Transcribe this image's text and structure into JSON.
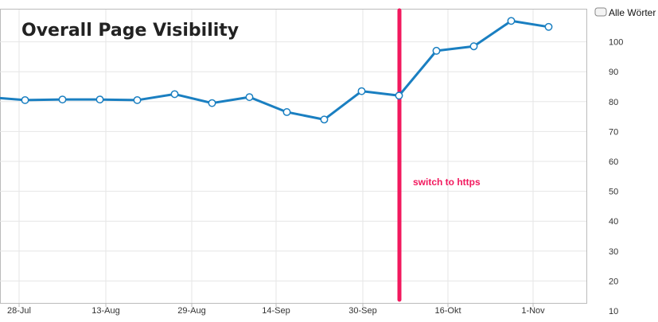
{
  "colors": {
    "series": "#1a7fc1",
    "annotation": "#f2195e",
    "grid": "#e6e6e6",
    "axis": "#bbbbbb"
  },
  "chart_data": {
    "type": "line",
    "title": "Overall Page Visibility",
    "legend": {
      "label": "Alle Wörter",
      "placement": "top-right"
    },
    "x_tick_labels": [
      "28-Jul",
      "13-Aug",
      "29-Aug",
      "14-Sep",
      "30-Sep",
      "16-Okt",
      "1-Nov"
    ],
    "y_ticks": [
      10,
      20,
      30,
      40,
      50,
      60,
      70,
      80,
      90,
      100
    ],
    "ylim": [
      10,
      109
    ],
    "grid": true,
    "series": [
      {
        "values": [
          81.5,
          80.5,
          80.7,
          80.7,
          80.5,
          82.5,
          79.5,
          81.5,
          76.5,
          74,
          83.5,
          82,
          97,
          98.5,
          107,
          105
        ]
      }
    ],
    "annotation": {
      "text": "switch to https",
      "at_point_index": 11
    }
  }
}
